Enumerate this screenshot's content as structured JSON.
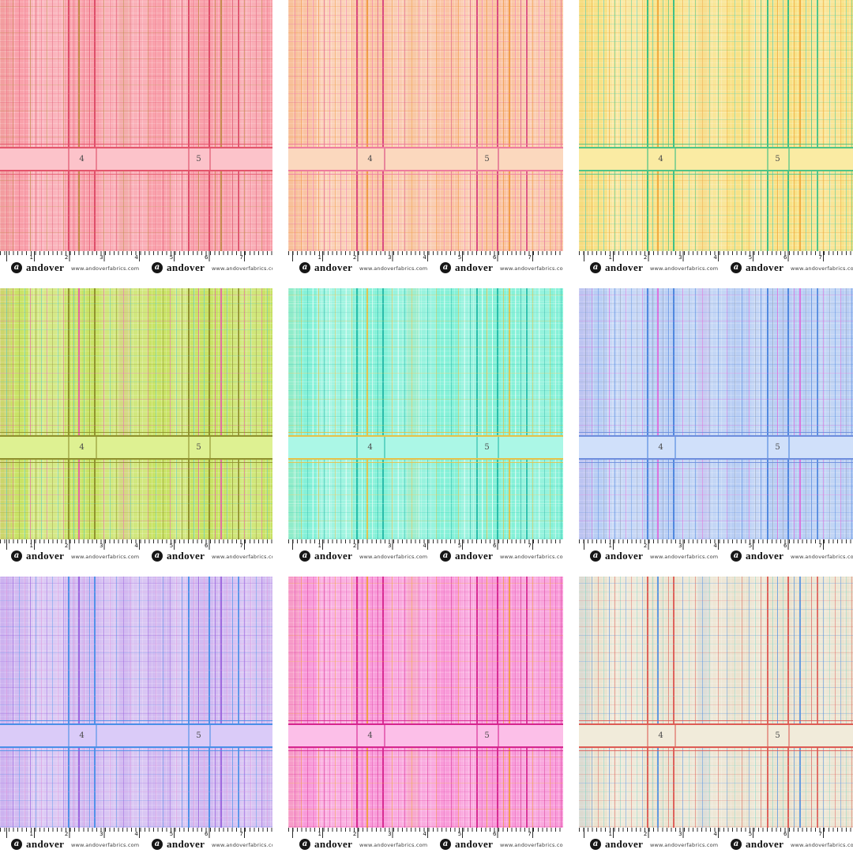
{
  "page": {
    "background": "#ffffff"
  },
  "brand": {
    "logo_letter": "a",
    "name": "andover",
    "url": "www.andoverfabrics.com",
    "url_truncated": "www.andoverfabrics.co"
  },
  "ruler": {
    "numbers": [
      "1",
      "2",
      "3",
      "4",
      "5",
      "6",
      "7"
    ]
  },
  "band": {
    "labels": [
      "4",
      "5"
    ]
  },
  "swatches": [
    {
      "colorway": "salmon-pink",
      "base": "#F9A1AB",
      "band": "#FCC3CA",
      "band_border": "#E4556C",
      "strong": "#DC4A66",
      "alt": "#C08945",
      "accent": "#F07E92"
    },
    {
      "colorway": "peach-orange",
      "base": "#FAC4A4",
      "band": "#FBD8BE",
      "band_border": "#EE7B9E",
      "strong": "#D8447E",
      "alt": "#F09A41",
      "accent": "#F27FB4"
    },
    {
      "colorway": "sunshine-yellow",
      "base": "#F8E287",
      "band": "#FAEBA3",
      "band_border": "#4FC487",
      "strong": "#35BE85",
      "alt": "#F0A73E",
      "accent": "#55CFBB"
    },
    {
      "colorway": "lime-green",
      "base": "#C9E366",
      "band": "#DEF192",
      "band_border": "#8F902E",
      "strong": "#8E8E2B",
      "alt": "#E763A8",
      "accent": "#5ECFC5"
    },
    {
      "colorway": "aqua-mint",
      "base": "#85F1D8",
      "band": "#ABF7E6",
      "band_border": "#E6C14A",
      "strong": "#25B9A8",
      "alt": "#E6C14A",
      "accent": "#FFFFFF"
    },
    {
      "colorway": "periwinkle-blue",
      "base": "#B9CEF4",
      "band": "#D0E0FA",
      "band_border": "#6E8EDD",
      "strong": "#4A84DD",
      "alt": "#DF6FDB",
      "accent": "#98A6BF"
    },
    {
      "colorway": "lavender-purple",
      "base": "#D2BBF1",
      "band": "#DACBF8",
      "band_border": "#4A8FE8",
      "strong": "#4A8FE8",
      "alt": "#9A63DD",
      "accent": "#E39FE0"
    },
    {
      "colorway": "hot-pink",
      "base": "#F99BD9",
      "band": "#FCBFE8",
      "band_border": "#D6268F",
      "strong": "#D6268F",
      "alt": "#F0A03E",
      "accent": "#E868BD"
    },
    {
      "colorway": "cream-taupe",
      "base": "#EBE3CF",
      "band": "#F1EBDA",
      "band_border": "#DD5C55",
      "strong": "#DD5C55",
      "alt": "#5A95E0",
      "accent": "#8ED9C9"
    }
  ]
}
